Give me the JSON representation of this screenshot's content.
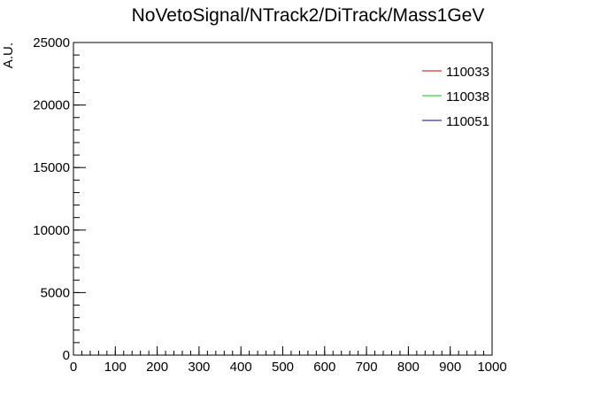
{
  "chart_data": {
    "type": "line",
    "title": "NoVetoSignal/NTrack2/DiTrack/Mass1GeV",
    "xlabel": "",
    "ylabel": "A.U.",
    "xlim": [
      0,
      1000
    ],
    "ylim": [
      0,
      25000
    ],
    "x_ticks": [
      0,
      100,
      200,
      300,
      400,
      500,
      600,
      700,
      800,
      900,
      1000
    ],
    "y_ticks": [
      0,
      5000,
      10000,
      15000,
      20000,
      25000
    ],
    "x_minor_step": 20,
    "y_minor_step": 1000,
    "grid": false,
    "legend_position": "top-right",
    "series": [
      {
        "name": "110033",
        "color": "#cc0000",
        "values": []
      },
      {
        "name": "110038",
        "color": "#00cc00",
        "values": []
      },
      {
        "name": "110051",
        "color": "#000099",
        "values": []
      }
    ]
  }
}
